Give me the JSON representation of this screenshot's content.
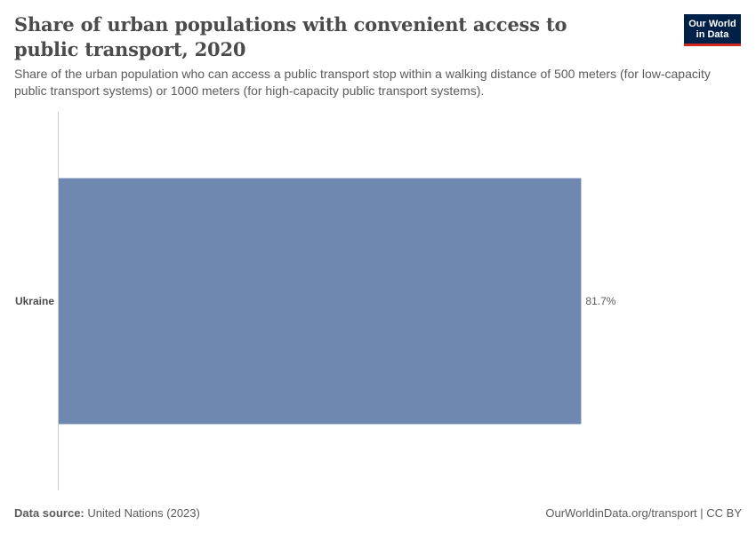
{
  "header": {
    "title": "Share of urban populations with convenient access to public transport, 2020",
    "subtitle": "Share of the urban population who can access a public transport stop within a walking distance of 500 meters (for low-capacity public transport systems) or 1000 meters (for high-capacity public transport systems).",
    "logo_line1": "Our World",
    "logo_line2": "in Data"
  },
  "footer": {
    "source_label": "Data source:",
    "source_text": "United Nations (2023)",
    "link_text": "OurWorldinData.org/transport | CC BY"
  },
  "colors": {
    "bar": "#6f88b0",
    "logo_bg": "#002147",
    "logo_accent": "#ce261e"
  },
  "chart_data": {
    "type": "bar",
    "orientation": "horizontal",
    "categories": [
      "Ukraine"
    ],
    "values": [
      81.7
    ],
    "value_labels": [
      "81.7%"
    ],
    "unit": "%",
    "xlim": [
      0,
      100
    ],
    "grid": false,
    "legend": "none"
  }
}
